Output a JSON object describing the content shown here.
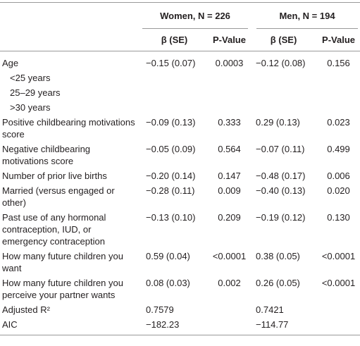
{
  "table": {
    "groups": [
      "Women, N = 226",
      "Men, N = 194"
    ],
    "columns": [
      "β (SE)",
      "P-Value",
      "β (SE)",
      "P-Value"
    ],
    "rows": [
      {
        "label": "Age",
        "cells": [
          "−0.15 (0.07)",
          "0.0003",
          "−0.12 (0.08)",
          "0.156"
        ]
      },
      {
        "label": "<25 years",
        "indent": true
      },
      {
        "label": "25–29 years",
        "indent": true
      },
      {
        "label": ">30 years",
        "indent": true
      },
      {
        "label": "Positive childbearing motivations score",
        "cells": [
          "−0.09 (0.13)",
          "0.333",
          "0.29 (0.13)",
          "0.023"
        ]
      },
      {
        "label": "Negative childbearing motivations score",
        "cells": [
          "−0.05 (0.09)",
          "0.564",
          "−0.07 (0.11)",
          "0.499"
        ]
      },
      {
        "label": "Number of prior live births",
        "cells": [
          "−0.20 (0.14)",
          "0.147",
          "−0.48 (0.17)",
          "0.006"
        ]
      },
      {
        "label": "Married (versus engaged or other)",
        "cells": [
          "−0.28 (0.11)",
          "0.009",
          "−0.40 (0.13)",
          "0.020"
        ]
      },
      {
        "label": "Past use of any hormonal contraception, IUD, or emergency contraception",
        "cells": [
          "−0.13 (0.10)",
          "0.209",
          "−0.19 (0.12)",
          "0.130"
        ]
      },
      {
        "label": "How many future children you want",
        "cells": [
          "0.59 (0.04)",
          "<0.0001",
          "0.38 (0.05)",
          "<0.0001"
        ]
      },
      {
        "label": "How many future children you perceive your partner wants",
        "cells": [
          "0.08 (0.03)",
          "0.002",
          "0.26 (0.05)",
          "<0.0001"
        ]
      },
      {
        "label": "Adjusted R²",
        "cells": [
          "0.7579",
          null,
          "0.7421",
          null
        ]
      },
      {
        "label": "AIC",
        "cells": [
          "−182.23",
          null,
          "−114.77",
          null
        ]
      }
    ]
  }
}
